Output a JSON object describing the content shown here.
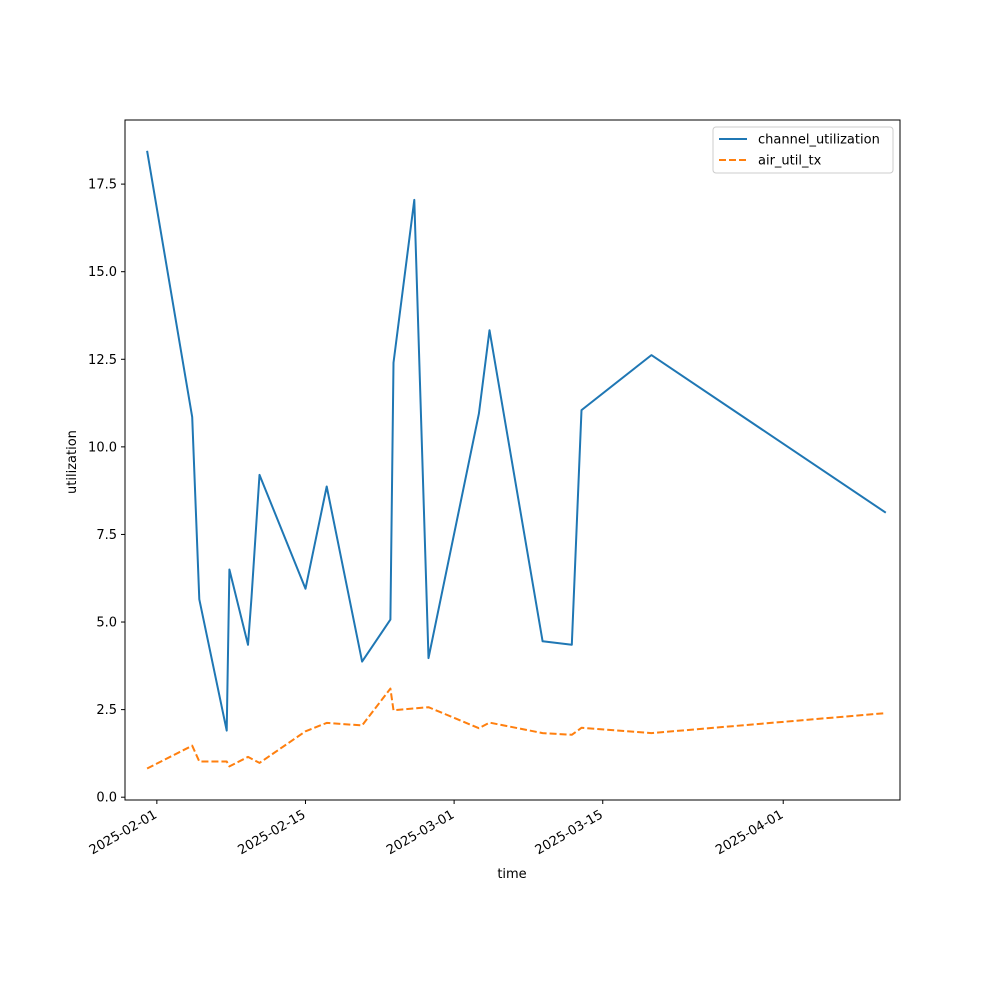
{
  "chart_data": {
    "type": "line",
    "title": "",
    "xlabel": "time",
    "ylabel": "utilization",
    "x_type": "date",
    "xlim": [
      "2025-01-29",
      "2025-04-12"
    ],
    "ylim": [
      -0.08,
      19.33
    ],
    "grid": false,
    "legend_position": "upper right",
    "x_ticks": [
      "2025-02-01",
      "2025-02-15",
      "2025-03-01",
      "2025-03-15",
      "2025-04-01"
    ],
    "x_tick_labels": [
      "2025-02-01",
      "2025-02-15",
      "2025-03-01",
      "2025-03-15",
      "2025-04-01"
    ],
    "y_ticks": [
      0.0,
      2.5,
      5.0,
      7.5,
      10.0,
      12.5,
      15.0,
      17.5
    ],
    "y_tick_labels": [
      "0.0",
      "2.5",
      "5.0",
      "7.5",
      "10.0",
      "12.5",
      "15.0",
      "17.5"
    ],
    "series": [
      {
        "name": "channel_utilization",
        "color": "#1f77b4",
        "line_style": "solid",
        "points": [
          {
            "x": "2025-01-31T02:00",
            "y": 18.45
          },
          {
            "x": "2025-02-04T08:00",
            "y": 10.85
          },
          {
            "x": "2025-02-05T00:00",
            "y": 5.65
          },
          {
            "x": "2025-02-07T14:00",
            "y": 1.9
          },
          {
            "x": "2025-02-07T20:00",
            "y": 6.5
          },
          {
            "x": "2025-02-09T14:00",
            "y": 4.35
          },
          {
            "x": "2025-02-09T22:00",
            "y": 5.7
          },
          {
            "x": "2025-02-10T16:00",
            "y": 9.2
          },
          {
            "x": "2025-02-15T00:00",
            "y": 5.95
          },
          {
            "x": "2025-02-17T00:00",
            "y": 8.87
          },
          {
            "x": "2025-02-20T08:00",
            "y": 3.87
          },
          {
            "x": "2025-02-23T00:00",
            "y": 5.07
          },
          {
            "x": "2025-02-23T07:00",
            "y": 12.4
          },
          {
            "x": "2025-02-25T06:00",
            "y": 17.05
          },
          {
            "x": "2025-02-26T14:00",
            "y": 3.97
          },
          {
            "x": "2025-03-03T08:00",
            "y": 10.95
          },
          {
            "x": "2025-03-04T08:00",
            "y": 13.33
          },
          {
            "x": "2025-03-09T08:00",
            "y": 4.45
          },
          {
            "x": "2025-03-12T02:00",
            "y": 4.35
          },
          {
            "x": "2025-03-13T00:00",
            "y": 11.05
          },
          {
            "x": "2025-03-19T14:00",
            "y": 12.62
          },
          {
            "x": "2025-04-10T16:00",
            "y": 8.12
          }
        ]
      },
      {
        "name": "air_util_tx",
        "color": "#ff7f0e",
        "line_style": "dashed",
        "points": [
          {
            "x": "2025-01-31T02:00",
            "y": 0.82
          },
          {
            "x": "2025-02-04T08:00",
            "y": 1.47
          },
          {
            "x": "2025-02-05T00:00",
            "y": 1.02
          },
          {
            "x": "2025-02-07T14:00",
            "y": 1.02
          },
          {
            "x": "2025-02-07T20:00",
            "y": 0.88
          },
          {
            "x": "2025-02-09T14:00",
            "y": 1.15
          },
          {
            "x": "2025-02-10T16:00",
            "y": 0.98
          },
          {
            "x": "2025-02-15T00:00",
            "y": 1.88
          },
          {
            "x": "2025-02-17T00:00",
            "y": 2.12
          },
          {
            "x": "2025-02-20T08:00",
            "y": 2.05
          },
          {
            "x": "2025-02-23T00:00",
            "y": 3.1
          },
          {
            "x": "2025-02-23T07:00",
            "y": 2.48
          },
          {
            "x": "2025-02-26T14:00",
            "y": 2.57
          },
          {
            "x": "2025-03-03T08:00",
            "y": 1.97
          },
          {
            "x": "2025-03-04T08:00",
            "y": 2.13
          },
          {
            "x": "2025-03-09T08:00",
            "y": 1.83
          },
          {
            "x": "2025-03-12T02:00",
            "y": 1.78
          },
          {
            "x": "2025-03-13T00:00",
            "y": 1.98
          },
          {
            "x": "2025-03-19T14:00",
            "y": 1.83
          },
          {
            "x": "2025-04-10T16:00",
            "y": 2.4
          }
        ]
      }
    ]
  }
}
